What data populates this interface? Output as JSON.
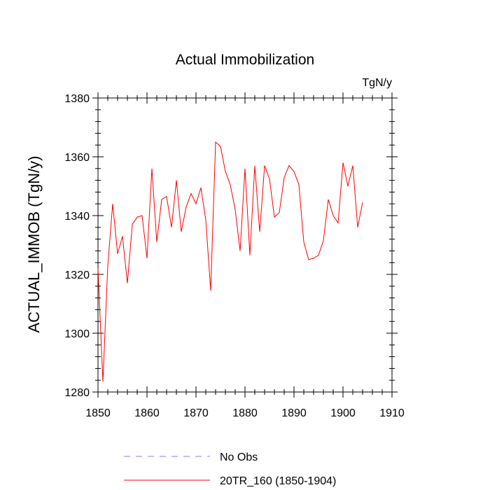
{
  "chart_data": {
    "type": "line",
    "title": "Actual Immobilization",
    "units": "TgN/y",
    "xlabel": "",
    "ylabel": "ACTUAL_IMMOB  (TgN/y)",
    "xlim": [
      1850,
      1910
    ],
    "ylim": [
      1280,
      1380
    ],
    "x_ticks": [
      1850,
      1860,
      1870,
      1880,
      1890,
      1900,
      1910
    ],
    "y_ticks": [
      1280,
      1300,
      1320,
      1340,
      1360,
      1380
    ],
    "x_minor_step": 2,
    "y_minor_step": 4,
    "grid": false,
    "legend_position": "bottom",
    "series": [
      {
        "name": "No Obs",
        "color": "#7f7fff",
        "style": "dashed",
        "values": []
      },
      {
        "name": "20TR_160 (1850-1904)",
        "color": "#ff0000",
        "style": "solid",
        "x": [
          1850,
          1851,
          1852,
          1853,
          1854,
          1855,
          1856,
          1857,
          1858,
          1859,
          1860,
          1861,
          1862,
          1863,
          1864,
          1865,
          1866,
          1867,
          1868,
          1869,
          1870,
          1871,
          1872,
          1873,
          1874,
          1875,
          1876,
          1877,
          1878,
          1879,
          1880,
          1881,
          1882,
          1883,
          1884,
          1885,
          1886,
          1887,
          1888,
          1889,
          1890,
          1891,
          1892,
          1893,
          1894,
          1895,
          1896,
          1897,
          1898,
          1899,
          1900,
          1901,
          1902,
          1903,
          1904
        ],
        "values": [
          1322,
          1283.5,
          1323,
          1344,
          1327,
          1333,
          1317,
          1337,
          1339.5,
          1340,
          1325.5,
          1356,
          1331,
          1345.5,
          1346.5,
          1336,
          1352,
          1334.5,
          1343,
          1347.5,
          1344,
          1349.5,
          1338.5,
          1314.5,
          1365,
          1363.5,
          1355,
          1350.5,
          1342,
          1328,
          1356,
          1326.5,
          1357,
          1334.5,
          1357,
          1352.5,
          1339.5,
          1341,
          1353,
          1357,
          1355,
          1350.5,
          1331,
          1325,
          1325.5,
          1326.5,
          1331.5,
          1345.5,
          1340,
          1337.5,
          1358,
          1350,
          1357,
          1336,
          1344.5
        ]
      }
    ]
  }
}
